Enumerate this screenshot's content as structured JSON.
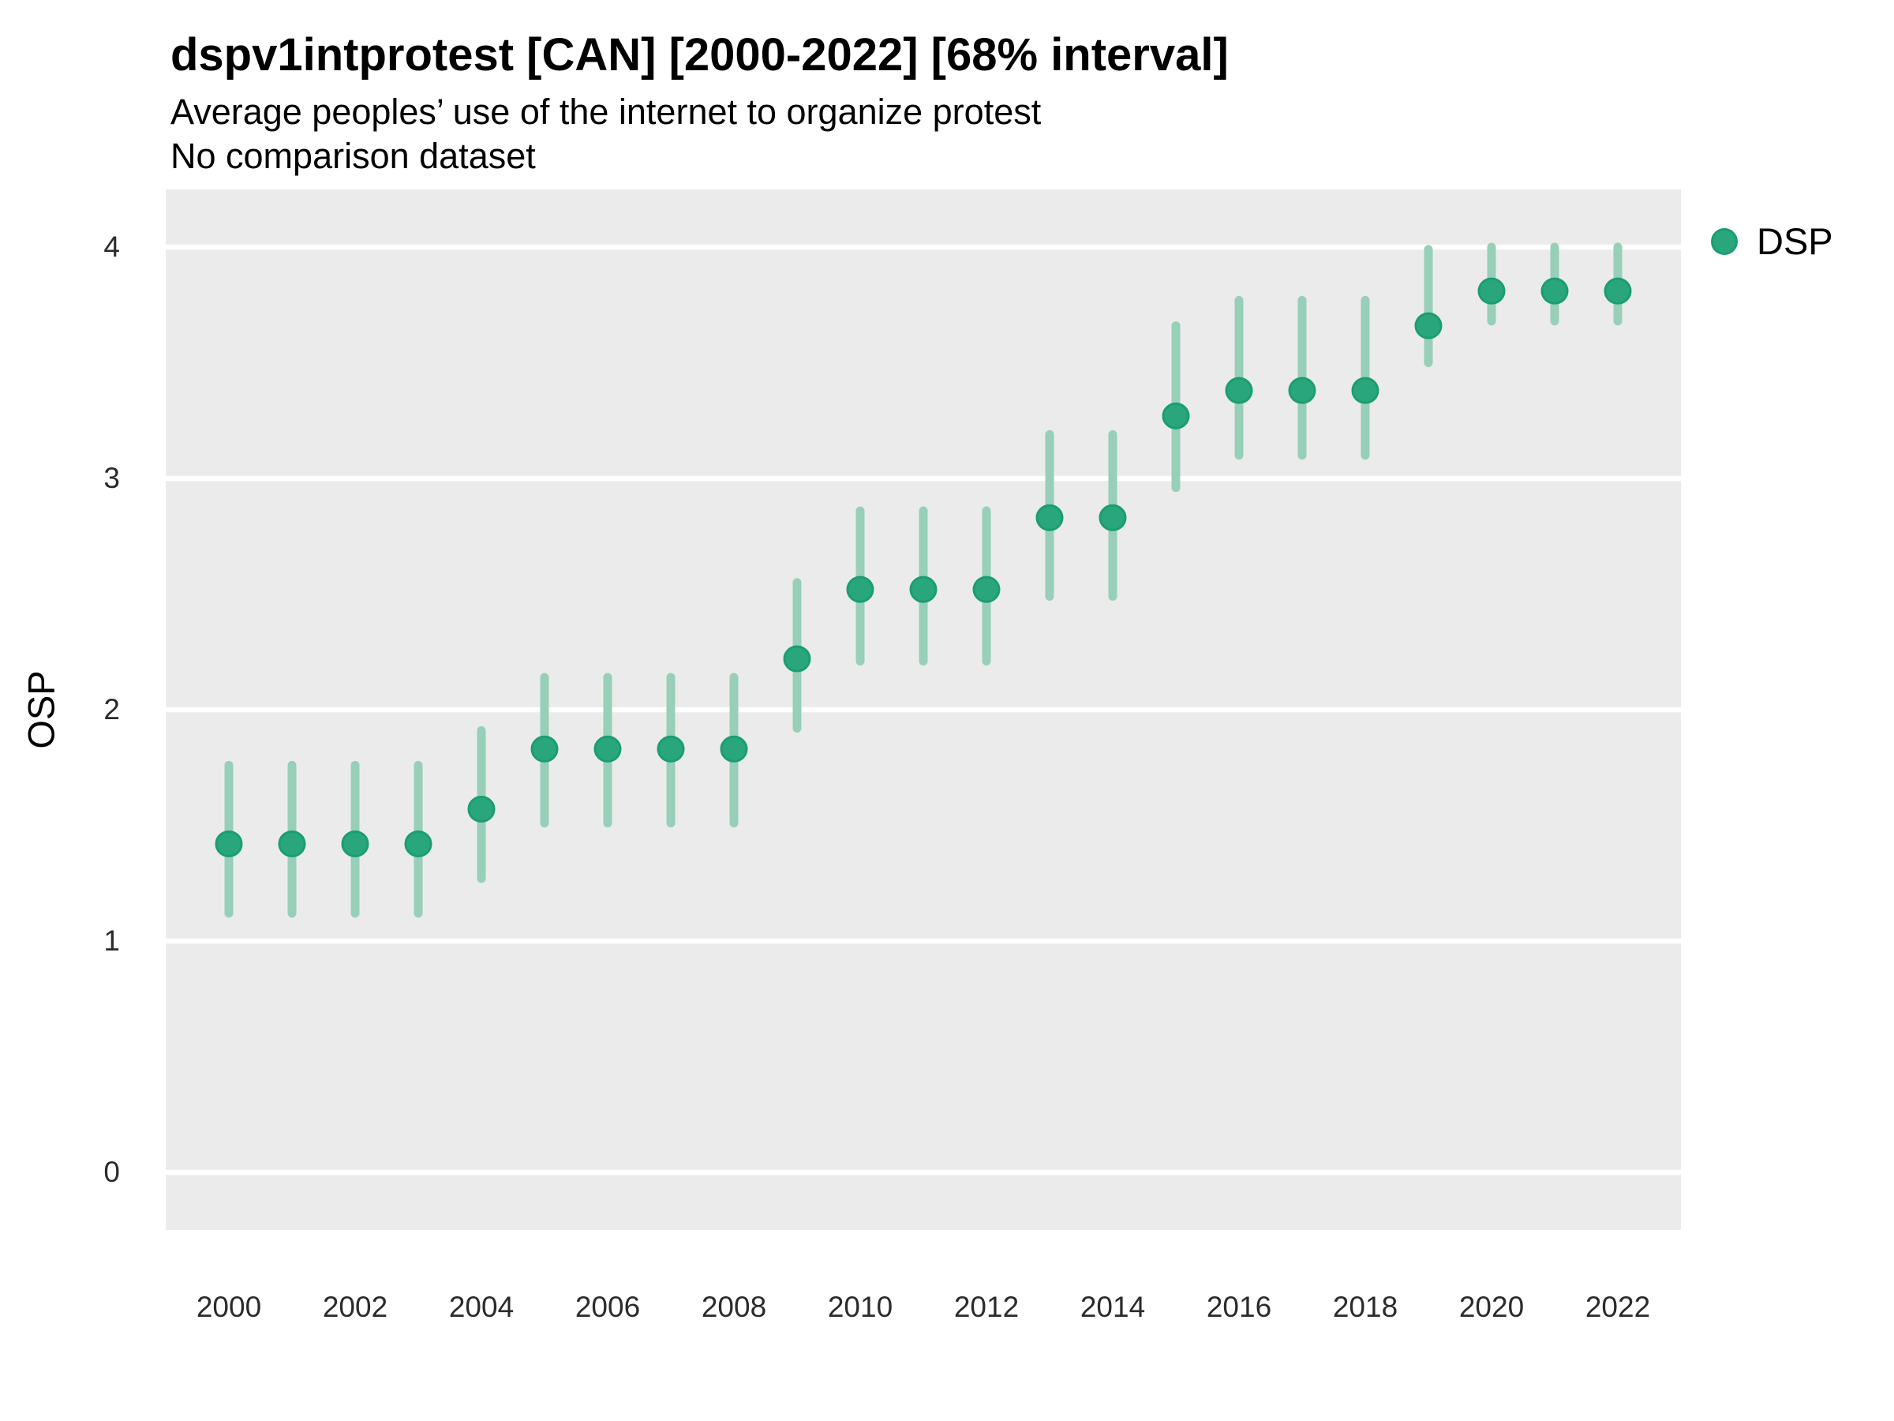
{
  "header": {
    "title": "dspv1intprotest [CAN] [2000-2022] [68% interval]",
    "subtitle1": "Average peoples’ use of the internet to organize protest",
    "subtitle2": "No comparison dataset"
  },
  "legend": {
    "label": "DSP"
  },
  "axes": {
    "y_title": "OSP",
    "y_tick_labels": [
      "0",
      "1",
      "2",
      "3",
      "4"
    ],
    "x_tick_labels": [
      "2000",
      "2002",
      "2004",
      "2006",
      "2008",
      "2010",
      "2012",
      "2014",
      "2016",
      "2018",
      "2020",
      "2022"
    ]
  },
  "colors": {
    "panel_background": "#ebebeb",
    "gridline": "#ffffff",
    "point_fill": "#2aa67c",
    "point_border": "#1a9e71",
    "interval_bar": "#97cfb9",
    "text": "#000000",
    "tick_text": "#2b2b2b"
  },
  "chart_data": {
    "type": "scatter",
    "title": "dspv1intprotest [CAN] [2000-2022] [68% interval]",
    "subtitle": "Average peoples’ use of the internet to organize protest",
    "note": "No comparison dataset",
    "xlabel": "",
    "ylabel": "OSP",
    "interval": "68%",
    "grid": "horizontal white gridlines on grey panel",
    "legend_position": "top-right",
    "ylim": [
      -0.25,
      4.25
    ],
    "xlim": [
      1999,
      2023
    ],
    "yticks": [
      0,
      1,
      2,
      3,
      4
    ],
    "xticks": [
      2000,
      2002,
      2004,
      2006,
      2008,
      2010,
      2012,
      2014,
      2016,
      2018,
      2020,
      2022
    ],
    "x": [
      2000,
      2001,
      2002,
      2003,
      2004,
      2005,
      2006,
      2007,
      2008,
      2009,
      2010,
      2011,
      2012,
      2013,
      2014,
      2015,
      2016,
      2017,
      2018,
      2019,
      2020,
      2021,
      2022
    ],
    "series": [
      {
        "name": "DSP",
        "values": [
          1.42,
          1.42,
          1.42,
          1.42,
          1.57,
          1.83,
          1.83,
          1.83,
          1.83,
          2.22,
          2.52,
          2.52,
          2.52,
          2.83,
          2.83,
          3.27,
          3.38,
          3.38,
          3.38,
          3.66,
          3.81,
          3.81,
          3.81
        ],
        "interval_low": [
          1.12,
          1.12,
          1.12,
          1.12,
          1.27,
          1.51,
          1.51,
          1.51,
          1.51,
          1.92,
          2.21,
          2.21,
          2.21,
          2.49,
          2.49,
          2.96,
          3.1,
          3.1,
          3.1,
          3.5,
          3.68,
          3.68,
          3.68
        ],
        "interval_high": [
          1.76,
          1.76,
          1.76,
          1.76,
          1.91,
          2.14,
          2.14,
          2.14,
          2.14,
          2.55,
          2.86,
          2.86,
          2.86,
          3.19,
          3.19,
          3.66,
          3.77,
          3.77,
          3.77,
          3.99,
          4.0,
          4.0,
          4.0
        ]
      }
    ]
  }
}
